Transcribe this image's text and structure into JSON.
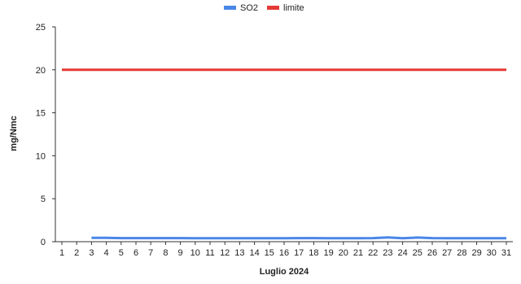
{
  "chart_data": {
    "type": "line",
    "title": "",
    "xlabel": "Luglio 2024",
    "ylabel": "mg/Nmc",
    "categories": [
      "1",
      "2",
      "3",
      "4",
      "5",
      "6",
      "7",
      "8",
      "9",
      "10",
      "11",
      "12",
      "13",
      "14",
      "15",
      "16",
      "17",
      "18",
      "19",
      "20",
      "21",
      "22",
      "23",
      "24",
      "25",
      "26",
      "27",
      "28",
      "29",
      "30",
      "31"
    ],
    "yticks": [
      "0",
      "5",
      "10",
      "15",
      "20",
      "25"
    ],
    "ylim": [
      0,
      25
    ],
    "grid": false,
    "legend_position": "top-center",
    "series": [
      {
        "name": "SO2",
        "color": "#4a86e8",
        "values": [
          null,
          null,
          0.45,
          0.45,
          0.42,
          0.42,
          0.42,
          0.42,
          0.42,
          0.4,
          0.4,
          0.4,
          0.4,
          0.4,
          0.4,
          0.4,
          0.42,
          0.42,
          0.4,
          0.4,
          0.4,
          0.42,
          0.5,
          0.4,
          0.48,
          0.42,
          0.4,
          0.4,
          0.4,
          0.4,
          0.4
        ]
      },
      {
        "name": "limite",
        "color": "#e53935",
        "values": [
          20,
          20,
          20,
          20,
          20,
          20,
          20,
          20,
          20,
          20,
          20,
          20,
          20,
          20,
          20,
          20,
          20,
          20,
          20,
          20,
          20,
          20,
          20,
          20,
          20,
          20,
          20,
          20,
          20,
          20,
          20
        ]
      }
    ]
  }
}
